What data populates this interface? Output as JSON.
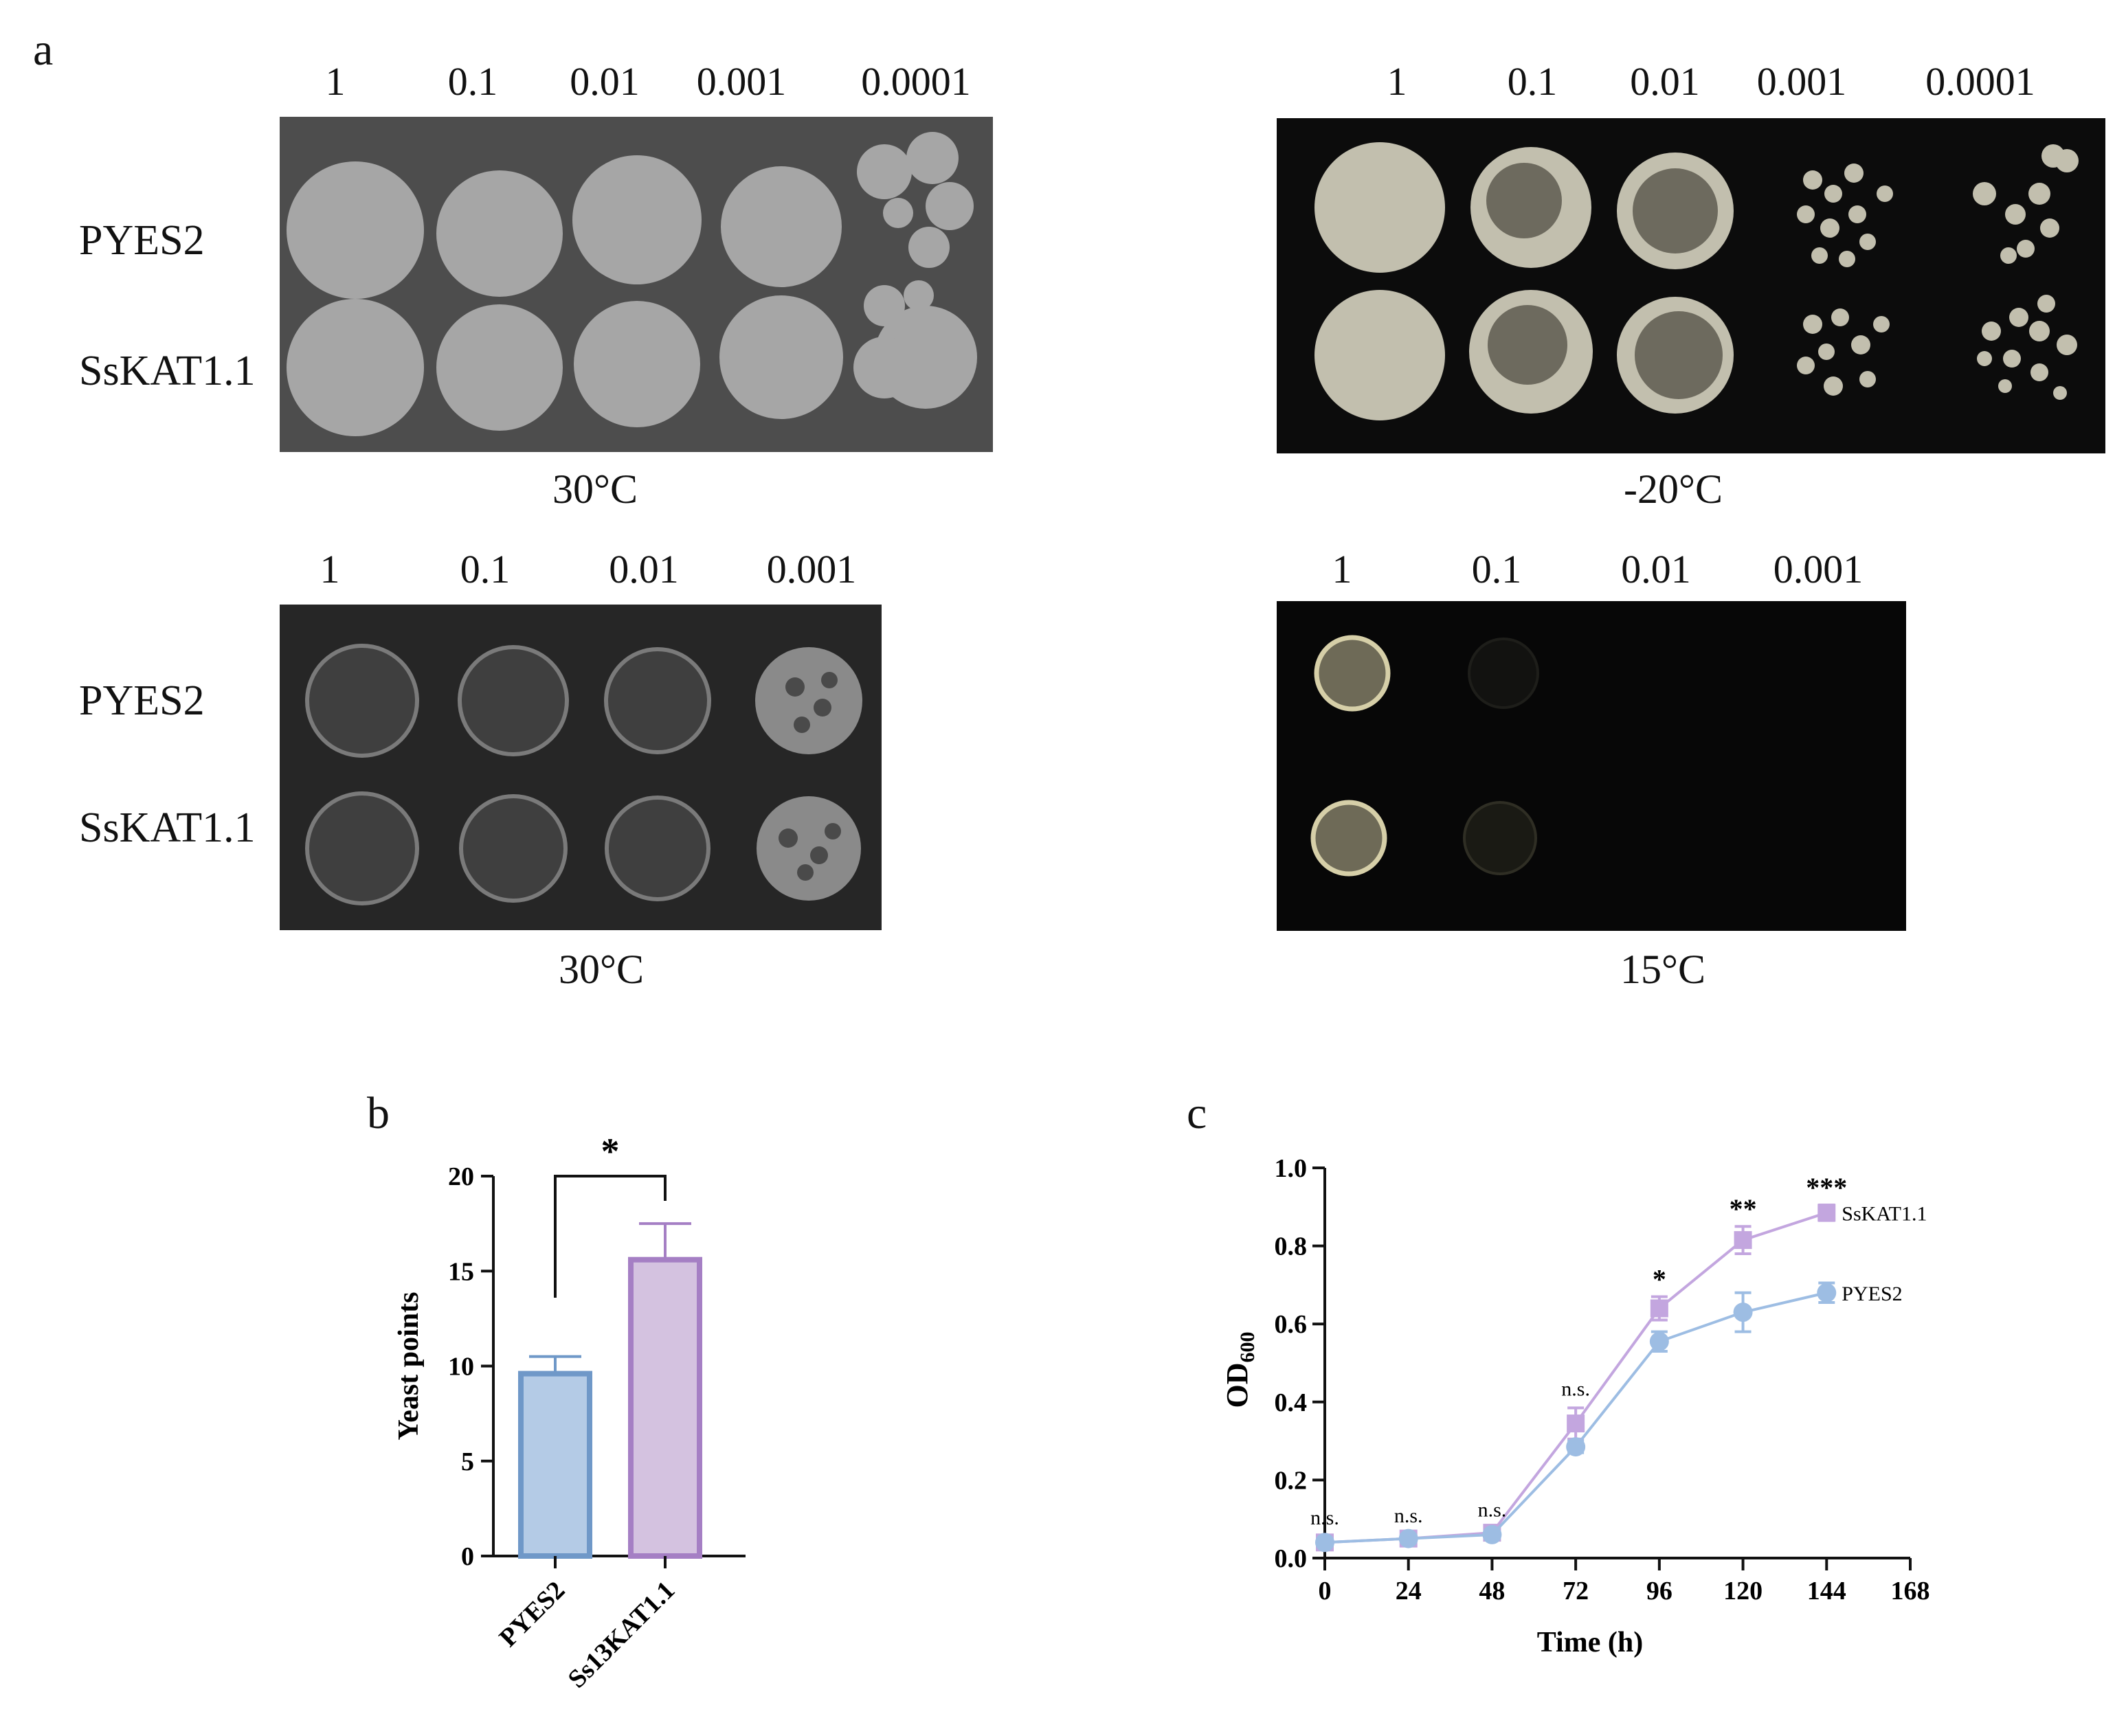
{
  "panel_a": {
    "label": "a",
    "row_labels": [
      "PYES2",
      "SsKAT1.1"
    ],
    "plates": [
      {
        "dilutions": [
          "1",
          "0.1",
          "0.01",
          "0.001",
          "0.0001"
        ],
        "temperature": "30°C",
        "background": "#4d4d4d",
        "colony_color": "#a6a6a6"
      },
      {
        "dilutions": [
          "1",
          "0.1",
          "0.01",
          "0.001",
          "0.0001"
        ],
        "temperature": "-20°C",
        "background": "#0c0c0c",
        "colony_color": "#c2bfae"
      },
      {
        "dilutions": [
          "1",
          "0.1",
          "0.01",
          "0.001"
        ],
        "temperature": "30°C",
        "background": "#262626",
        "colony_color": "#6b6b6b"
      },
      {
        "dilutions": [
          "1",
          "0.1",
          "0.01",
          "0.001"
        ],
        "temperature": "15°C",
        "background": "#070707",
        "colony_color": "#cfc9a4"
      }
    ]
  },
  "panel_b": {
    "label": "b",
    "chart_data": {
      "type": "bar",
      "categories": [
        "PYES2",
        "Ss13KAT1.1"
      ],
      "values": [
        9.6,
        15.6
      ],
      "errors": [
        0.9,
        1.9
      ],
      "ylabel": "Yeast points",
      "ylim": [
        0,
        20
      ],
      "yticks": [
        "0",
        "5",
        "10",
        "15",
        "20"
      ],
      "significance": "*",
      "colors": {
        "fill": [
          "#b4cbe6",
          "#d4c2e0"
        ],
        "edge": [
          "#6f98c8",
          "#a57fc4"
        ]
      }
    }
  },
  "panel_c": {
    "label": "c",
    "chart_data": {
      "type": "line",
      "x": [
        0,
        24,
        48,
        72,
        96,
        120,
        144
      ],
      "xlim": [
        0,
        168
      ],
      "xticks": [
        "0",
        "24",
        "48",
        "72",
        "96",
        "120",
        "144",
        "168"
      ],
      "ylim": [
        0,
        1.0
      ],
      "yticks": [
        "0.0",
        "0.2",
        "0.4",
        "0.6",
        "0.8",
        "1.0"
      ],
      "xlabel": "Time (h)",
      "ylabel_main": "OD",
      "ylabel_sub": "600",
      "series": [
        {
          "name": "SsKAT1.1",
          "values": [
            0.04,
            0.05,
            0.065,
            0.345,
            0.64,
            0.815,
            0.885
          ],
          "errors": [
            0.015,
            0.01,
            0.01,
            0.04,
            0.03,
            0.035,
            0.02
          ],
          "color": "#c3a6df",
          "marker": "square"
        },
        {
          "name": "PYES2",
          "values": [
            0.04,
            0.05,
            0.06,
            0.285,
            0.555,
            0.63,
            0.68
          ],
          "errors": [
            0.01,
            0.01,
            0.01,
            0.015,
            0.025,
            0.05,
            0.025
          ],
          "color": "#9dbde3",
          "marker": "circle"
        }
      ],
      "annotations": [
        "n.s.",
        "n.s.",
        "n.s.",
        "n.s.",
        "*",
        "**",
        "***"
      ]
    }
  }
}
